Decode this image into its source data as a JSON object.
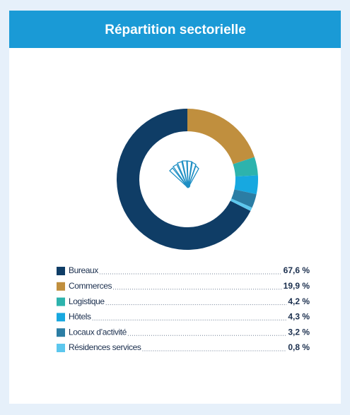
{
  "chart_data": {
    "type": "donut",
    "title": "Répartition sectorielle",
    "categories": [
      "Bureaux",
      "Commerces",
      "Logistique",
      "Hôtels",
      "Locaux d’activité",
      "Résidences services"
    ],
    "values": [
      67.6,
      19.9,
      4.2,
      4.3,
      3.2,
      0.8
    ],
    "value_labels": [
      "67,6 %",
      "19,9 %",
      "4,2 %",
      "4,3 %",
      "3,2 %",
      "0,8 %"
    ],
    "colors": [
      "#0f3d66",
      "#c08f3e",
      "#2db3ad",
      "#17a8e0",
      "#2b7da4",
      "#5cc7ee"
    ]
  }
}
